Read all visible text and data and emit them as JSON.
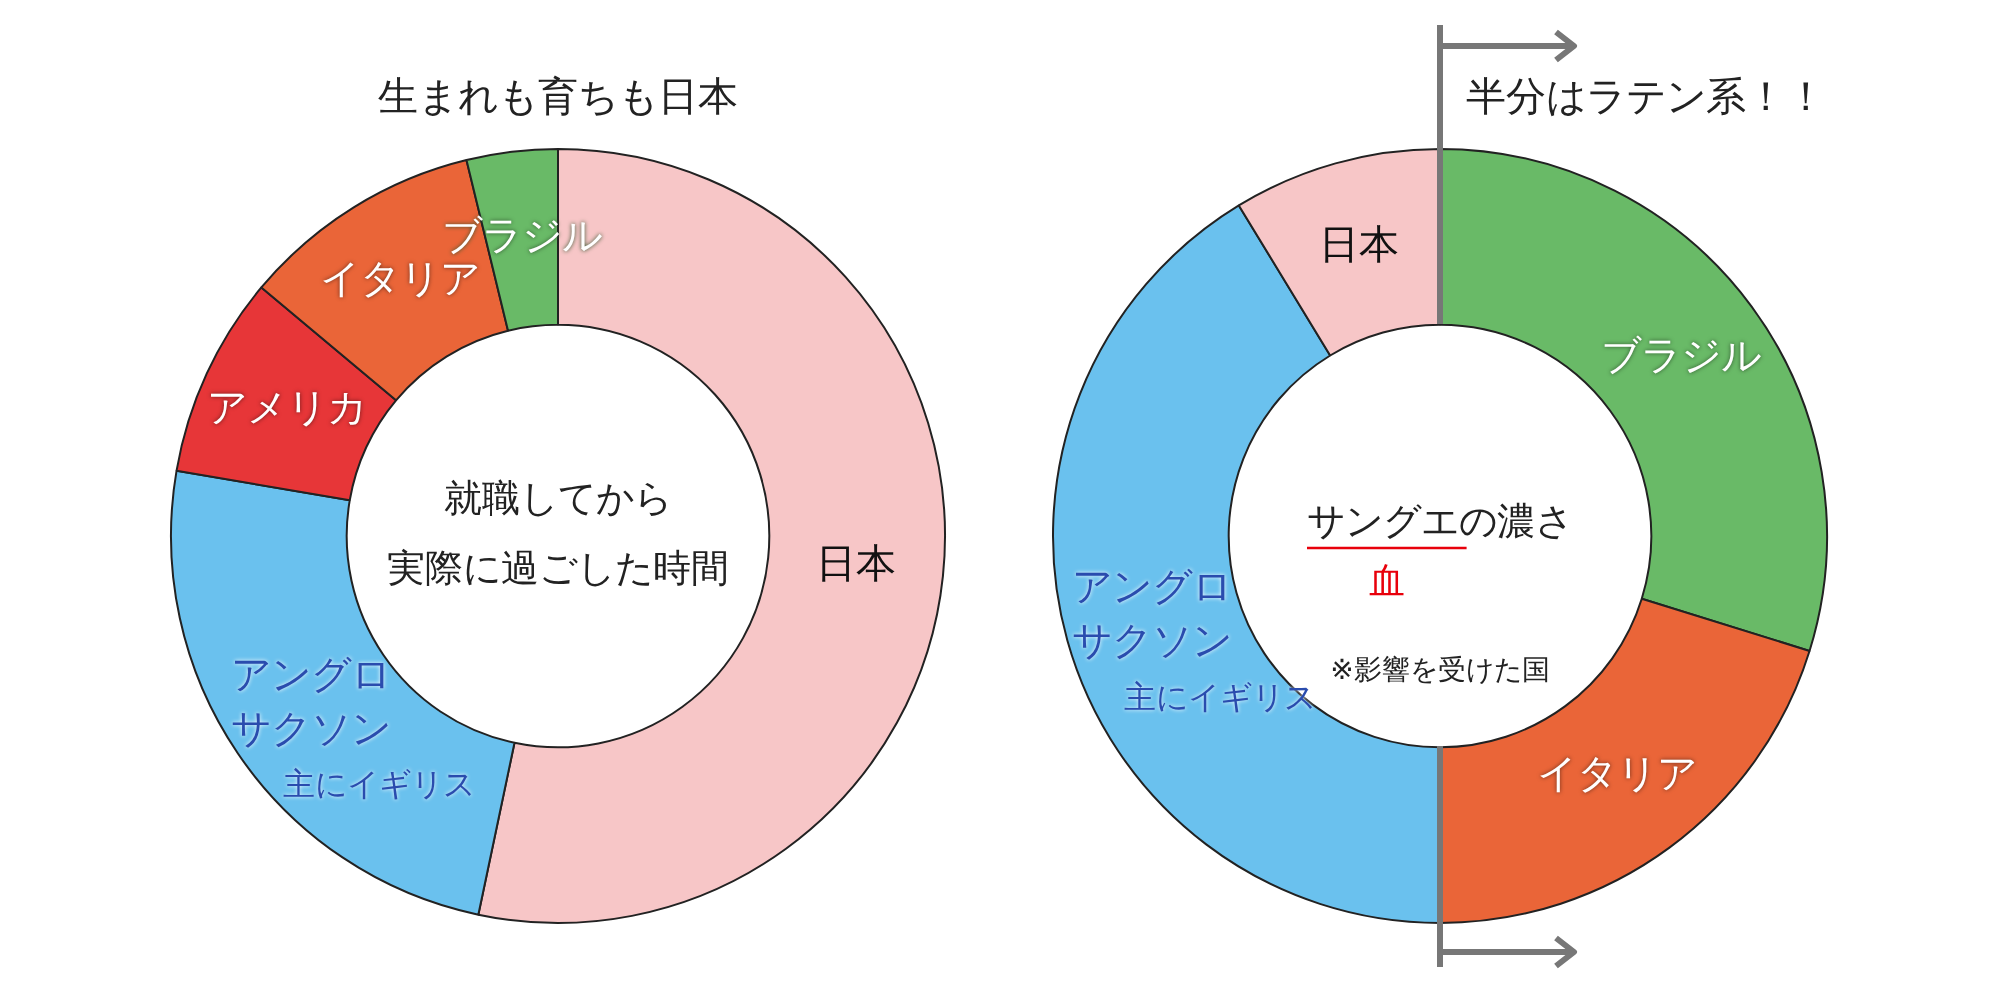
{
  "chart_data": [
    {
      "type": "donut",
      "title": "生まれも育ちも日本",
      "subtitle": "就職してから実際に過ごした時間",
      "categories": [
        "日本",
        "アングロサクソン",
        "アメリカ",
        "イタリア",
        "ブラジル"
      ],
      "values": [
        53.3,
        24.4,
        8.4,
        10.1,
        3.8
      ],
      "colors": [
        "#f7c6c7",
        "#6ac1ee",
        "#e73638",
        "#ea6538",
        "#69ba67"
      ],
      "annotations": [
        {
          "text": "主にイギリス",
          "x": "アングロサクソン"
        }
      ]
    },
    {
      "type": "donut",
      "title": "半分はラテン系！！",
      "subtitle": "サングエの濃さ",
      "categories": [
        "ブラジル",
        "イタリア",
        "アングロサクソン",
        "日本"
      ],
      "values": [
        29.8,
        20.2,
        41.3,
        8.7
      ],
      "colors": [
        "#69ba67",
        "#ea6538",
        "#6ac1ee",
        "#f7c6c7"
      ],
      "annotations": [
        {
          "text": "主にイギリス",
          "x": "アングロサクソン"
        },
        "血",
        "※影響を受けた国"
      ]
    }
  ]
}
